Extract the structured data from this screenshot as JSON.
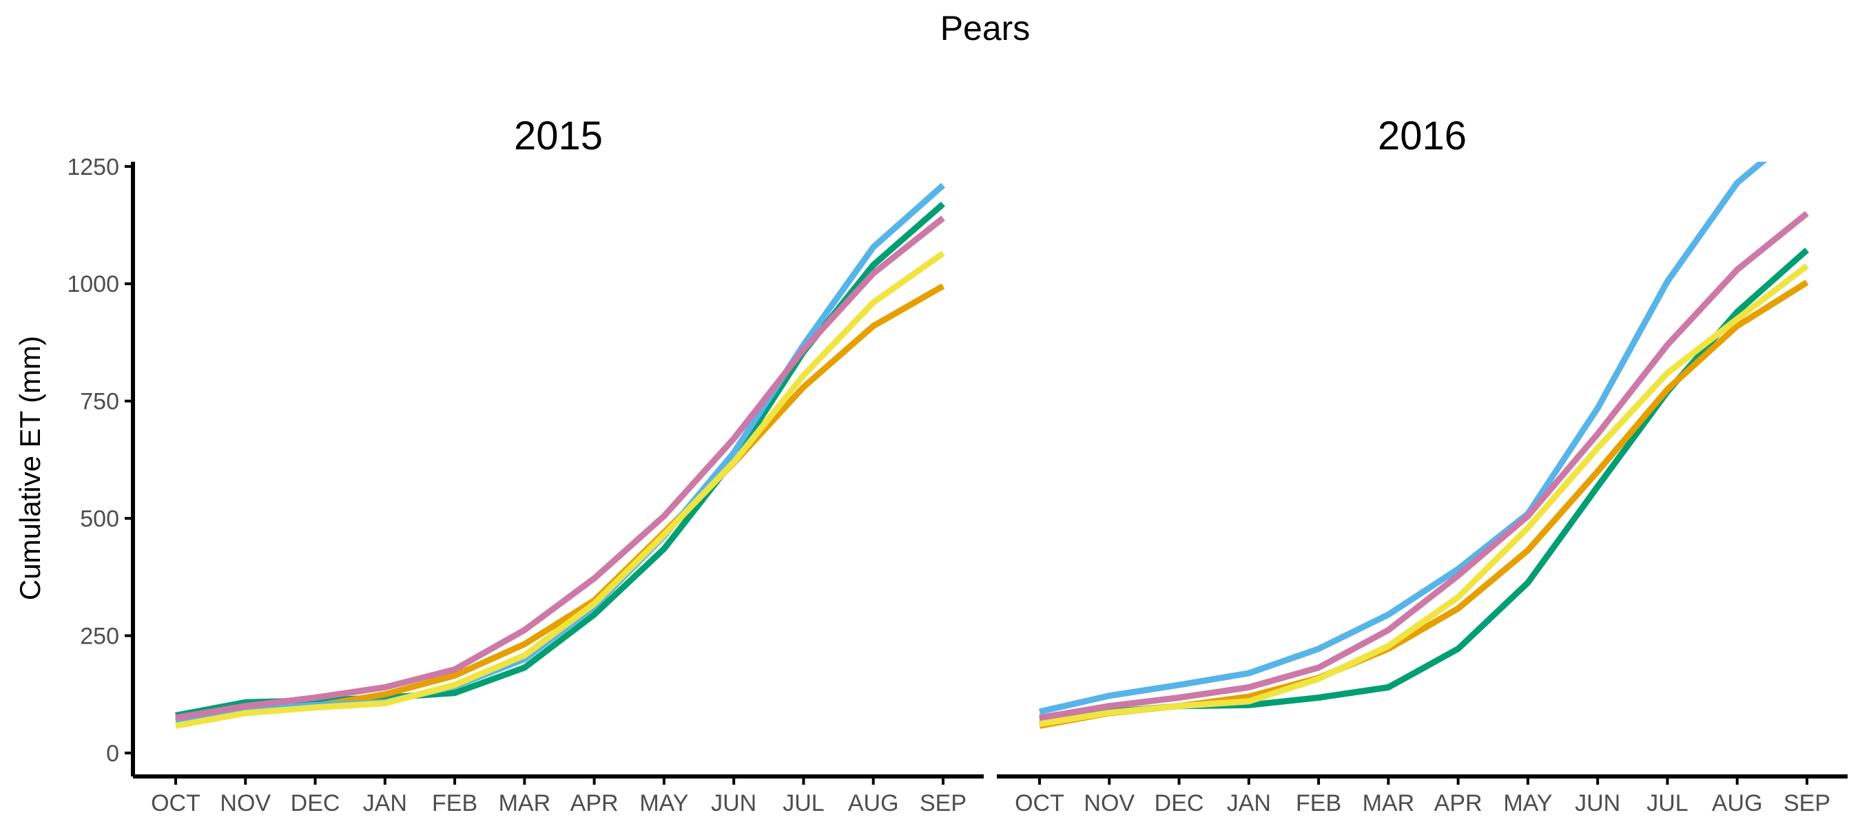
{
  "chart_data": {
    "type": "line",
    "title": "Pears",
    "ylabel": "Cumulative ET (mm)",
    "xlabel": "",
    "ylim": [
      -50,
      1260
    ],
    "yticks": [
      0,
      250,
      500,
      750,
      1000,
      1250
    ],
    "categories": [
      "OCT",
      "NOV",
      "DEC",
      "JAN",
      "FEB",
      "MAR",
      "APR",
      "MAY",
      "JUN",
      "JUL",
      "AUG",
      "SEP"
    ],
    "grid": false,
    "legend": "none",
    "panels": [
      {
        "title": "2015",
        "series": [
          {
            "color": "#009E73",
            "values": [
              80,
              108,
              112,
              118,
              128,
              182,
              295,
              435,
              625,
              855,
              1040,
              1170
            ]
          },
          {
            "color": "#E69F00",
            "values": [
              68,
              90,
              100,
              125,
              165,
              232,
              325,
              470,
              618,
              780,
              910,
              995
            ]
          },
          {
            "color": "#56B4E9",
            "values": [
              68,
              93,
              102,
              108,
              142,
              200,
              312,
              462,
              640,
              870,
              1078,
              1210
            ]
          },
          {
            "color": "#F0E442",
            "values": [
              58,
              85,
              97,
              106,
              145,
              208,
              318,
              465,
              620,
              805,
              960,
              1065
            ]
          },
          {
            "color": "#CC79A7",
            "values": [
              75,
              100,
              118,
              140,
              178,
              262,
              372,
              505,
              670,
              860,
              1022,
              1140
            ]
          }
        ]
      },
      {
        "title": "2016",
        "series": [
          {
            "color": "#009E73",
            "values": [
              72,
              88,
              100,
              102,
              118,
              140,
              222,
              363,
              568,
              770,
              940,
              1072
            ]
          },
          {
            "color": "#E69F00",
            "values": [
              58,
              85,
              100,
              120,
              160,
              222,
              308,
              432,
              600,
              775,
              910,
              1003
            ]
          },
          {
            "color": "#56B4E9",
            "values": [
              88,
              122,
              145,
              170,
              222,
              295,
              392,
              510,
              735,
              1005,
              1215,
              1340
            ]
          },
          {
            "color": "#F0E442",
            "values": [
              62,
              86,
              100,
              110,
              158,
              228,
              332,
              480,
              650,
              810,
              925,
              1038
            ]
          },
          {
            "color": "#CC79A7",
            "values": [
              75,
              100,
              118,
              140,
              182,
              262,
              378,
              505,
              680,
              870,
              1030,
              1150
            ]
          }
        ]
      }
    ]
  }
}
